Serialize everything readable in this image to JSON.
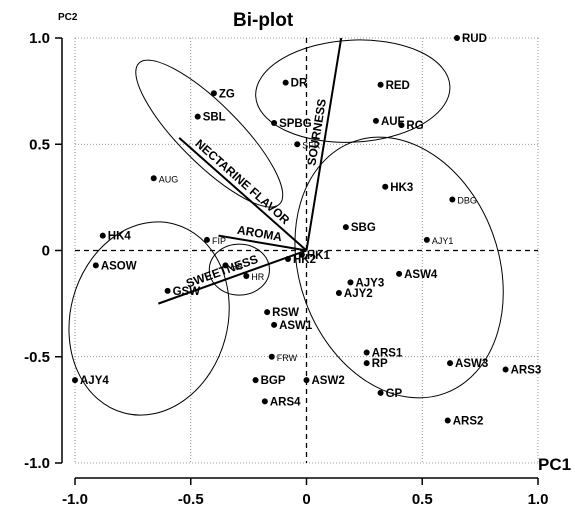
{
  "chart_data": {
    "type": "scatter",
    "title": "Bi-plot",
    "xlabel": "PC1",
    "ylabel": "PC2",
    "xlim": [
      -1.0,
      1.0
    ],
    "ylim": [
      -1.0,
      1.0
    ],
    "xticks": [
      "-1.0",
      "-0.5",
      "0",
      "0.5",
      "1.0"
    ],
    "yticks": [
      "-1.0",
      "-0.5",
      "0",
      "0.5",
      "1.0"
    ],
    "grid": "dotted",
    "reference_lines": "dashed at x=0 and y=0",
    "points": [
      {
        "label": "RUD",
        "x": 0.65,
        "y": 1.0
      },
      {
        "label": "DR",
        "x": -0.09,
        "y": 0.79
      },
      {
        "label": "RED",
        "x": 0.32,
        "y": 0.78
      },
      {
        "label": "ZG",
        "x": -0.4,
        "y": 0.74
      },
      {
        "label": "SBL",
        "x": -0.47,
        "y": 0.63
      },
      {
        "label": "AUF",
        "x": 0.3,
        "y": 0.61
      },
      {
        "label": "RG",
        "x": 0.41,
        "y": 0.59
      },
      {
        "label": "SPBG",
        "x": -0.14,
        "y": 0.6
      },
      {
        "label": "SFR",
        "x": -0.04,
        "y": 0.5,
        "small": true
      },
      {
        "label": "AUG",
        "x": -0.66,
        "y": 0.34,
        "small": true
      },
      {
        "label": "HK3",
        "x": 0.34,
        "y": 0.3
      },
      {
        "label": "DBG",
        "x": 0.63,
        "y": 0.24,
        "small": true
      },
      {
        "label": "SBG",
        "x": 0.17,
        "y": 0.11
      },
      {
        "label": "AJY1",
        "x": 0.52,
        "y": 0.05,
        "small": true
      },
      {
        "label": "HK4",
        "x": -0.88,
        "y": 0.07
      },
      {
        "label": "FIP",
        "x": -0.43,
        "y": 0.05,
        "small": true
      },
      {
        "label": "HK1",
        "x": -0.02,
        "y": -0.02
      },
      {
        "label": "HK2",
        "x": -0.08,
        "y": -0.04
      },
      {
        "label": "ASOW",
        "x": -0.91,
        "y": -0.07
      },
      {
        "label": "HB",
        "x": -0.35,
        "y": -0.07,
        "small": true
      },
      {
        "label": "ASW4",
        "x": 0.4,
        "y": -0.11
      },
      {
        "label": "HR",
        "x": -0.26,
        "y": -0.12,
        "small": true
      },
      {
        "label": "AJY3",
        "x": 0.19,
        "y": -0.15
      },
      {
        "label": "GSW",
        "x": -0.6,
        "y": -0.19
      },
      {
        "label": "AJY2",
        "x": 0.14,
        "y": -0.2
      },
      {
        "label": "RSW",
        "x": -0.17,
        "y": -0.29
      },
      {
        "label": "ASW1",
        "x": -0.14,
        "y": -0.35
      },
      {
        "label": "ARS1",
        "x": 0.26,
        "y": -0.48
      },
      {
        "label": "FRW",
        "x": -0.15,
        "y": -0.5,
        "small": true
      },
      {
        "label": "RP",
        "x": 0.26,
        "y": -0.53
      },
      {
        "label": "ASW3",
        "x": 0.62,
        "y": -0.53
      },
      {
        "label": "ARS3",
        "x": 0.86,
        "y": -0.56
      },
      {
        "label": "AJY4",
        "x": -1.0,
        "y": -0.61
      },
      {
        "label": "BGP",
        "x": -0.22,
        "y": -0.61
      },
      {
        "label": "ASW2",
        "x": 0.0,
        "y": -0.61
      },
      {
        "label": "GP",
        "x": 0.32,
        "y": -0.67
      },
      {
        "label": "ARS4",
        "x": -0.18,
        "y": -0.71
      },
      {
        "label": "ARS2",
        "x": 0.61,
        "y": -0.8
      }
    ],
    "vectors": [
      {
        "label": "SOURNESS",
        "x": 0.15,
        "y": 1.0
      },
      {
        "label": "NECTARINE FLAVOR",
        "x": -0.55,
        "y": 0.53
      },
      {
        "label": "AROMA",
        "x": -0.38,
        "y": 0.07
      },
      {
        "label": "SWEETNESS",
        "x": -0.64,
        "y": -0.25
      }
    ],
    "groups": [
      {
        "cx": 0.2,
        "cy": 0.75,
        "rx": 0.42,
        "ry": 0.24,
        "angle": -3
      },
      {
        "cx": -0.42,
        "cy": 0.55,
        "rx": 0.43,
        "ry": 0.14,
        "angle": 45
      },
      {
        "cx": -0.68,
        "cy": -0.32,
        "rx": 0.34,
        "ry": 0.46,
        "angle": 15
      },
      {
        "cx": -0.29,
        "cy": -0.09,
        "rx": 0.13,
        "ry": 0.12,
        "angle": 0
      },
      {
        "cx": 0.4,
        "cy": -0.08,
        "rx": 0.43,
        "ry": 0.63,
        "angle": -20
      }
    ]
  }
}
